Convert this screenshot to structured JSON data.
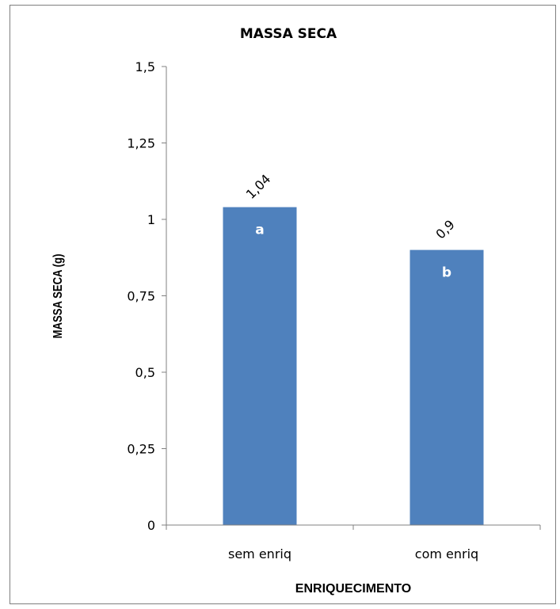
{
  "chart_data": {
    "type": "bar",
    "title": "MASSA SECA",
    "xlabel": "ENRIQUECIMENTO",
    "ylabel": "MASSA SECA (g)",
    "categories": [
      "sem enriq",
      "com enriq"
    ],
    "values": [
      1.04,
      0.9
    ],
    "data_labels": [
      "1,04",
      "0,9"
    ],
    "bar_letters": [
      "a",
      "b"
    ],
    "ylim": [
      0,
      1.5
    ],
    "yticks": [
      0,
      0.25,
      0.5,
      0.75,
      1,
      1.25,
      1.5
    ],
    "ytick_labels": [
      "0",
      "0,25",
      "0,5",
      "0,75",
      "1",
      "1,25",
      "1,5"
    ],
    "grid": false,
    "legend": "none",
    "bar_color": "#4F81BD"
  }
}
